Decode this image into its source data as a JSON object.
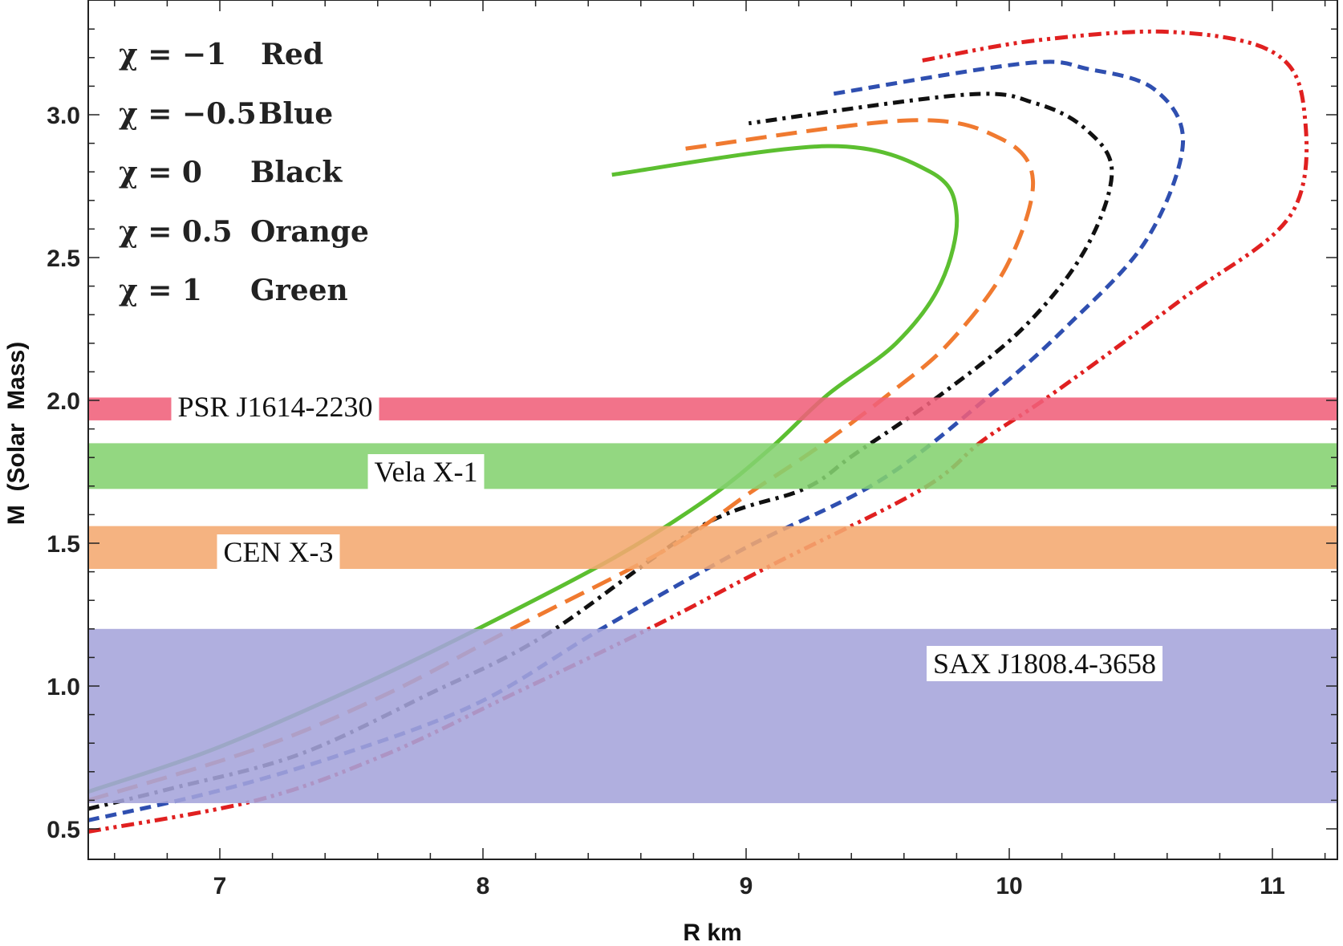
{
  "chart_data": {
    "type": "line",
    "xlabel": "R  km",
    "ylabel": "M  (Solar  Mass)",
    "xlim": [
      6.5,
      11.25
    ],
    "ylim": [
      0.4,
      3.4
    ],
    "x_ticks": [
      "7",
      "8",
      "9",
      "10",
      "11"
    ],
    "y_ticks": [
      "0.5",
      "1.0",
      "1.5",
      "2.0",
      "2.5",
      "3.0"
    ],
    "grid": false,
    "legend": {
      "placement": "top-left",
      "entries": [
        {
          "chi": "χ = −1",
          "color_name": "Red"
        },
        {
          "chi": "χ = −0.5",
          "color_name": "Blue"
        },
        {
          "chi": "χ = 0",
          "color_name": "Black"
        },
        {
          "chi": "χ = 0.5",
          "color_name": "Orange"
        },
        {
          "chi": "χ = 1",
          "color_name": "Green"
        }
      ]
    },
    "series": [
      {
        "color": "#e02020",
        "dash": "dash-dot-dot",
        "points": [
          [
            6.5,
            0.49
          ],
          [
            7.14,
            0.6
          ],
          [
            7.63,
            0.76
          ],
          [
            8.11,
            0.97
          ],
          [
            8.63,
            1.2
          ],
          [
            9.09,
            1.42
          ],
          [
            9.67,
            1.69
          ],
          [
            9.9,
            1.86
          ],
          [
            10.16,
            2.02
          ],
          [
            10.65,
            2.35
          ],
          [
            11.07,
            2.65
          ],
          [
            11.12,
            3.02
          ],
          [
            11.0,
            3.22
          ],
          [
            10.61,
            3.29
          ],
          [
            10.1,
            3.26
          ],
          [
            9.67,
            3.19
          ]
        ]
      },
      {
        "color": "#2f4fb0",
        "dash": "dashed",
        "points": [
          [
            6.5,
            0.53
          ],
          [
            6.98,
            0.63
          ],
          [
            7.46,
            0.76
          ],
          [
            7.98,
            0.94
          ],
          [
            8.45,
            1.2
          ],
          [
            8.99,
            1.48
          ],
          [
            9.51,
            1.72
          ],
          [
            9.93,
            2.02
          ],
          [
            10.22,
            2.26
          ],
          [
            10.52,
            2.56
          ],
          [
            10.66,
            2.9
          ],
          [
            10.55,
            3.09
          ],
          [
            10.3,
            3.16
          ],
          [
            10.06,
            3.18
          ],
          [
            9.31,
            3.07
          ]
        ]
      },
      {
        "color": "#111111",
        "dash": "dash-dot",
        "points": [
          [
            6.5,
            0.57
          ],
          [
            6.81,
            0.64
          ],
          [
            7.3,
            0.76
          ],
          [
            7.79,
            0.97
          ],
          [
            8.24,
            1.18
          ],
          [
            8.83,
            1.56
          ],
          [
            9.22,
            1.69
          ],
          [
            9.41,
            1.81
          ],
          [
            9.74,
            2.02
          ],
          [
            10.06,
            2.26
          ],
          [
            10.29,
            2.53
          ],
          [
            10.39,
            2.8
          ],
          [
            10.29,
            2.95
          ],
          [
            10.1,
            3.04
          ],
          [
            9.83,
            3.07
          ],
          [
            9.01,
            2.97
          ]
        ]
      },
      {
        "color": "#f07a30",
        "dash": "long-dash",
        "points": [
          [
            6.5,
            0.6
          ],
          [
            7.14,
            0.78
          ],
          [
            7.63,
            0.97
          ],
          [
            8.11,
            1.2
          ],
          [
            8.7,
            1.48
          ],
          [
            9.02,
            1.68
          ],
          [
            9.28,
            1.84
          ],
          [
            9.54,
            2.02
          ],
          [
            9.77,
            2.2
          ],
          [
            9.99,
            2.47
          ],
          [
            10.09,
            2.77
          ],
          [
            9.96,
            2.92
          ],
          [
            9.61,
            2.98
          ],
          [
            8.76,
            2.88
          ]
        ]
      },
      {
        "color": "#5cbf30",
        "dash": "solid",
        "points": [
          [
            6.5,
            0.63
          ],
          [
            6.98,
            0.78
          ],
          [
            7.53,
            1.0
          ],
          [
            7.98,
            1.2
          ],
          [
            8.5,
            1.45
          ],
          [
            8.86,
            1.66
          ],
          [
            9.09,
            1.83
          ],
          [
            9.31,
            2.02
          ],
          [
            9.57,
            2.2
          ],
          [
            9.74,
            2.41
          ],
          [
            9.8,
            2.65
          ],
          [
            9.7,
            2.8
          ],
          [
            9.31,
            2.89
          ],
          [
            8.49,
            2.79
          ]
        ]
      }
    ],
    "bands": [
      {
        "label": "PSR J1614-2230",
        "range": [
          1.93,
          2.01
        ],
        "color": "#f0607a"
      },
      {
        "label": "Vela X-1",
        "range": [
          1.69,
          1.85
        ],
        "color": "#84d270"
      },
      {
        "label": "CEN X-3",
        "range": [
          1.41,
          1.56
        ],
        "color": "#f4a870"
      },
      {
        "label": "SAX J1808.4-3658",
        "range": [
          0.59,
          1.2
        ],
        "color": "#a5a4db"
      }
    ]
  }
}
